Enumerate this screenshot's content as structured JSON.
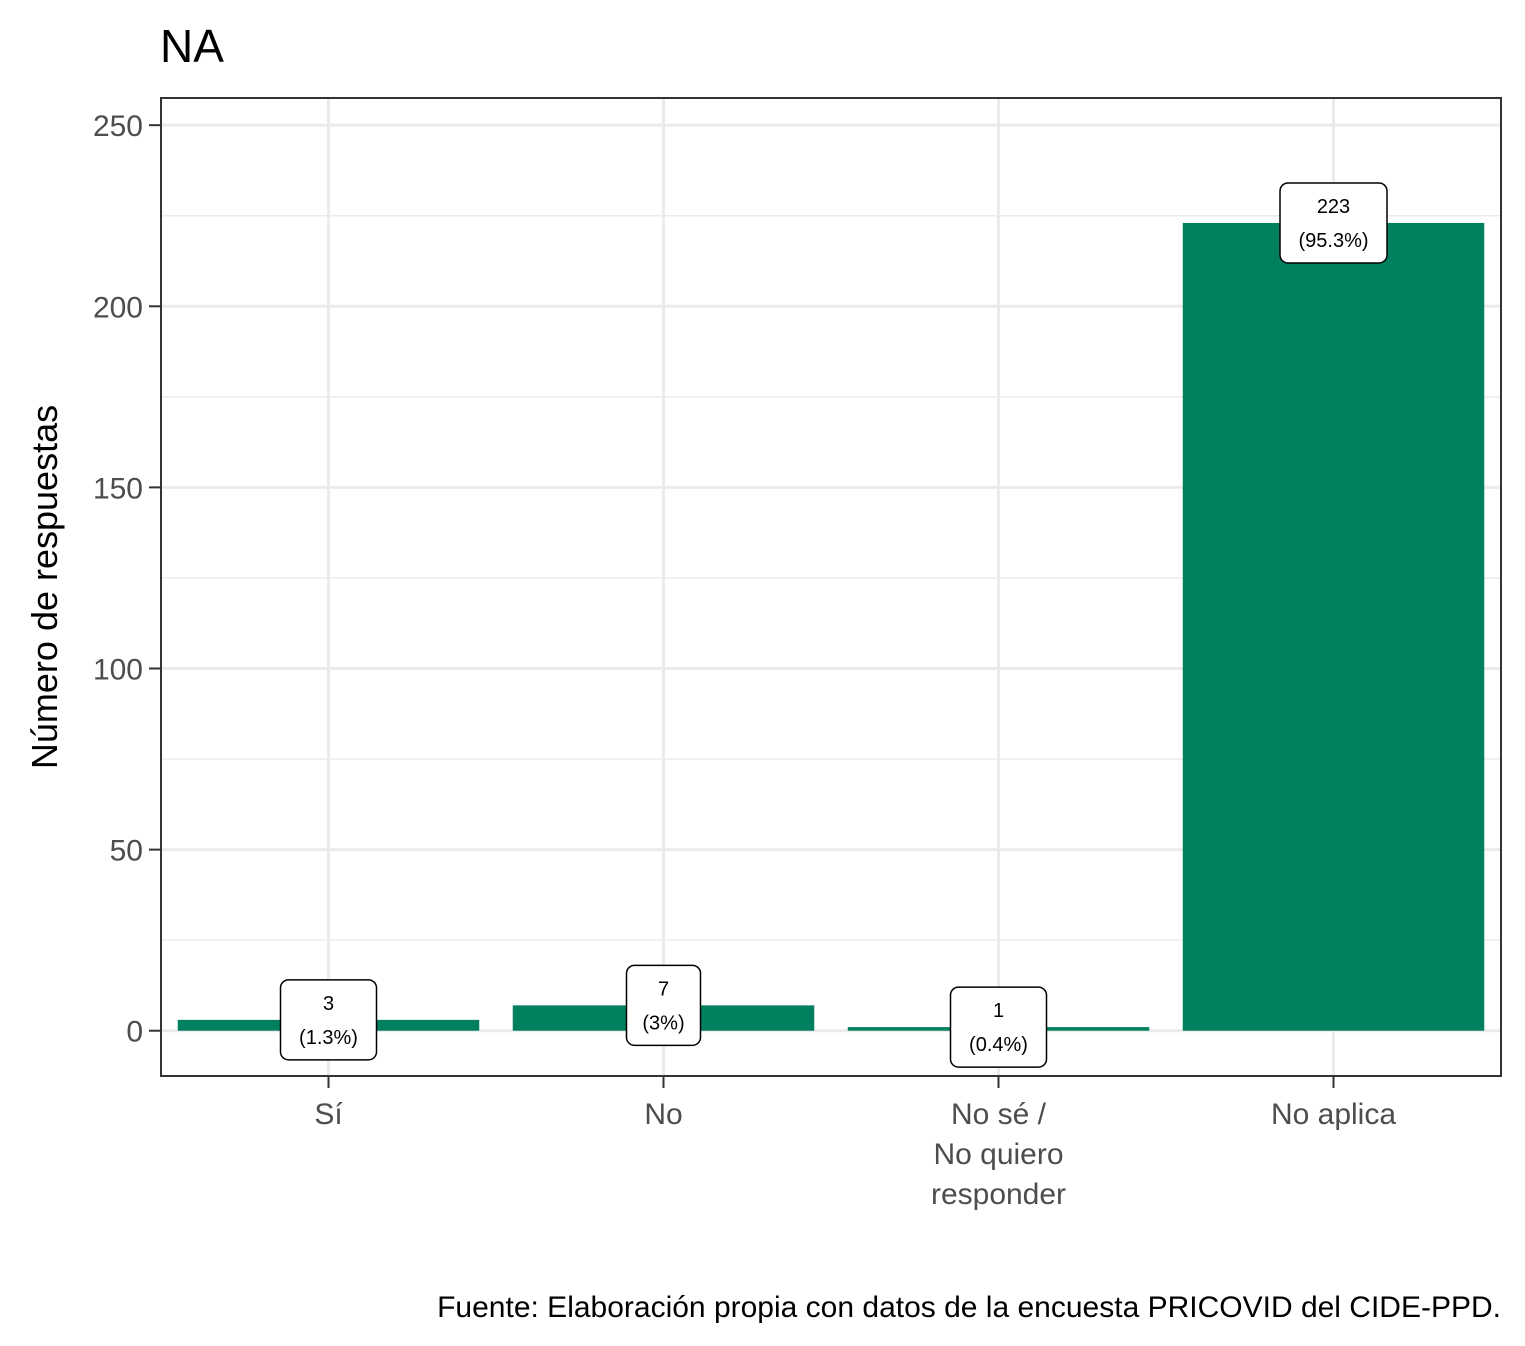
{
  "chart_data": {
    "type": "bar",
    "title": "NA",
    "xlabel": "",
    "ylabel": "Número de respuestas",
    "caption": "Fuente: Elaboración propia con datos de la encuesta PRICOVID del CIDE-PPD.",
    "categories": [
      [
        "Sí"
      ],
      [
        "No"
      ],
      [
        "No sé /",
        "No quiero",
        "responder"
      ],
      [
        "No aplica"
      ]
    ],
    "values": [
      3,
      7,
      1,
      223
    ],
    "value_labels": [
      "3",
      "7",
      "1",
      "223"
    ],
    "percent_labels": [
      "(1.3%)",
      "(3%)",
      "(0.4%)",
      "(95.3%)"
    ],
    "ylim": [
      -12.5,
      257.5
    ],
    "yticks": [
      0,
      50,
      100,
      150,
      200,
      250
    ],
    "grid": true,
    "bar_color": "#00805E"
  }
}
